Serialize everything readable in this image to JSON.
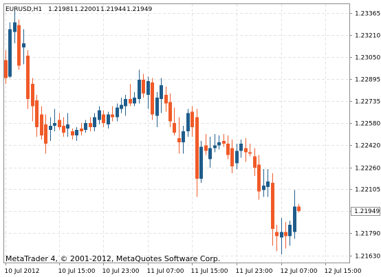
{
  "header": {
    "symbol": "EURUSD,H1",
    "open": "1.21981",
    "high": "1.22001",
    "low": "1.21944",
    "close": "1.21949"
  },
  "footer": {
    "copyright": "MetaTrader 4, © 2001-2012, MetaQuotes Software Corp."
  },
  "current_price_label": "1.21949",
  "colors": {
    "bull": "#1f5c8b",
    "bear": "#f05a28",
    "background": "#ffffff",
    "grid": "#e2e2e2",
    "axis": "#8a8a8a"
  },
  "chart_data": {
    "type": "candlestick",
    "grid": true,
    "ylim": [
      1.2158,
      1.2343
    ],
    "y_ticks": [
      "1.23365",
      "1.23210",
      "1.23050",
      "1.22895",
      "1.22735",
      "1.22580",
      "1.22420",
      "1.22260",
      "1.22105",
      "1.21949",
      "1.21790",
      "1.21630"
    ],
    "x_tick_labels": [
      "10 Jul 2012",
      "10 Jul 15:00",
      "10 Jul 23:00",
      "11 Jul 07:00",
      "11 Jul 15:00",
      "11 Jul 23:00",
      "12 Jul 07:00",
      "12 Jul 15:00"
    ],
    "x_tick_candle_index": [
      0,
      12,
      22,
      32,
      42,
      52,
      62,
      72
    ],
    "current_price": 1.21949,
    "candles": [
      {
        "o": 1.2303,
        "h": 1.231,
        "l": 1.2286,
        "c": 1.229
      },
      {
        "o": 1.2291,
        "h": 1.233,
        "l": 1.229,
        "c": 1.2325
      },
      {
        "o": 1.2323,
        "h": 1.234,
        "l": 1.2315,
        "c": 1.233
      },
      {
        "o": 1.2328,
        "h": 1.2332,
        "l": 1.2296,
        "c": 1.2299
      },
      {
        "o": 1.2312,
        "h": 1.2325,
        "l": 1.23,
        "c": 1.2315
      },
      {
        "o": 1.2306,
        "h": 1.231,
        "l": 1.2268,
        "c": 1.2275
      },
      {
        "o": 1.2286,
        "h": 1.229,
        "l": 1.2259,
        "c": 1.227
      },
      {
        "o": 1.2274,
        "h": 1.2278,
        "l": 1.2248,
        "c": 1.2255
      },
      {
        "o": 1.2264,
        "h": 1.227,
        "l": 1.2246,
        "c": 1.2249
      },
      {
        "o": 1.2257,
        "h": 1.2264,
        "l": 1.2236,
        "c": 1.2243
      },
      {
        "o": 1.2253,
        "h": 1.2262,
        "l": 1.2245,
        "c": 1.2256
      },
      {
        "o": 1.2256,
        "h": 1.2268,
        "l": 1.2252,
        "c": 1.2258
      },
      {
        "o": 1.226,
        "h": 1.2265,
        "l": 1.2253,
        "c": 1.2255
      },
      {
        "o": 1.2256,
        "h": 1.2262,
        "l": 1.2248,
        "c": 1.2251
      },
      {
        "o": 1.2254,
        "h": 1.2265,
        "l": 1.2248,
        "c": 1.2257
      },
      {
        "o": 1.2252,
        "h": 1.2254,
        "l": 1.2246,
        "c": 1.2249
      },
      {
        "o": 1.2249,
        "h": 1.2255,
        "l": 1.2245,
        "c": 1.2253
      },
      {
        "o": 1.2254,
        "h": 1.2258,
        "l": 1.2249,
        "c": 1.2252
      },
      {
        "o": 1.2253,
        "h": 1.226,
        "l": 1.2251,
        "c": 1.2258
      },
      {
        "o": 1.2258,
        "h": 1.2262,
        "l": 1.2252,
        "c": 1.2255
      },
      {
        "o": 1.2255,
        "h": 1.2265,
        "l": 1.2252,
        "c": 1.2262
      },
      {
        "o": 1.226,
        "h": 1.227,
        "l": 1.2257,
        "c": 1.2267
      },
      {
        "o": 1.2264,
        "h": 1.2267,
        "l": 1.2255,
        "c": 1.2258
      },
      {
        "o": 1.2257,
        "h": 1.2266,
        "l": 1.2254,
        "c": 1.2264
      },
      {
        "o": 1.2264,
        "h": 1.227,
        "l": 1.2259,
        "c": 1.2262
      },
      {
        "o": 1.2262,
        "h": 1.2272,
        "l": 1.2259,
        "c": 1.2269
      },
      {
        "o": 1.2268,
        "h": 1.2276,
        "l": 1.2265,
        "c": 1.2271
      },
      {
        "o": 1.227,
        "h": 1.2278,
        "l": 1.2263,
        "c": 1.2275
      },
      {
        "o": 1.2275,
        "h": 1.2286,
        "l": 1.227,
        "c": 1.2272
      },
      {
        "o": 1.2272,
        "h": 1.228,
        "l": 1.227,
        "c": 1.2276
      },
      {
        "o": 1.2275,
        "h": 1.2296,
        "l": 1.2272,
        "c": 1.2289
      },
      {
        "o": 1.2289,
        "h": 1.2293,
        "l": 1.2276,
        "c": 1.2279
      },
      {
        "o": 1.2278,
        "h": 1.2291,
        "l": 1.2268,
        "c": 1.2288
      },
      {
        "o": 1.2287,
        "h": 1.229,
        "l": 1.226,
        "c": 1.2264
      },
      {
        "o": 1.2263,
        "h": 1.228,
        "l": 1.2255,
        "c": 1.2276
      },
      {
        "o": 1.2275,
        "h": 1.229,
        "l": 1.2265,
        "c": 1.2285
      },
      {
        "o": 1.2278,
        "h": 1.2284,
        "l": 1.2266,
        "c": 1.2272
      },
      {
        "o": 1.2273,
        "h": 1.2279,
        "l": 1.2255,
        "c": 1.2259
      },
      {
        "o": 1.2258,
        "h": 1.2269,
        "l": 1.2249,
        "c": 1.2251
      },
      {
        "o": 1.2247,
        "h": 1.2262,
        "l": 1.2236,
        "c": 1.2244
      },
      {
        "o": 1.2244,
        "h": 1.2256,
        "l": 1.2236,
        "c": 1.2252
      },
      {
        "o": 1.2252,
        "h": 1.2268,
        "l": 1.2248,
        "c": 1.2265
      },
      {
        "o": 1.2266,
        "h": 1.227,
        "l": 1.2248,
        "c": 1.2255
      },
      {
        "o": 1.2262,
        "h": 1.2268,
        "l": 1.2205,
        "c": 1.2218
      },
      {
        "o": 1.2218,
        "h": 1.2245,
        "l": 1.2215,
        "c": 1.2241
      },
      {
        "o": 1.2242,
        "h": 1.225,
        "l": 1.2235,
        "c": 1.2238
      },
      {
        "o": 1.2232,
        "h": 1.2248,
        "l": 1.2226,
        "c": 1.224
      },
      {
        "o": 1.224,
        "h": 1.225,
        "l": 1.2237,
        "c": 1.2242
      },
      {
        "o": 1.2242,
        "h": 1.2249,
        "l": 1.2239,
        "c": 1.2244
      },
      {
        "o": 1.2245,
        "h": 1.225,
        "l": 1.2241,
        "c": 1.2243
      },
      {
        "o": 1.2243,
        "h": 1.2249,
        "l": 1.2232,
        "c": 1.2235
      },
      {
        "o": 1.224,
        "h": 1.2246,
        "l": 1.2222,
        "c": 1.2227
      },
      {
        "o": 1.2229,
        "h": 1.2243,
        "l": 1.2225,
        "c": 1.2238
      },
      {
        "o": 1.2238,
        "h": 1.2246,
        "l": 1.2233,
        "c": 1.2243
      },
      {
        "o": 1.224,
        "h": 1.2247,
        "l": 1.223,
        "c": 1.2237
      },
      {
        "o": 1.2237,
        "h": 1.2243,
        "l": 1.2234,
        "c": 1.2236
      },
      {
        "o": 1.2234,
        "h": 1.224,
        "l": 1.222,
        "c": 1.2226
      },
      {
        "o": 1.2228,
        "h": 1.2235,
        "l": 1.2203,
        "c": 1.2209
      },
      {
        "o": 1.221,
        "h": 1.2225,
        "l": 1.2205,
        "c": 1.2213
      },
      {
        "o": 1.2212,
        "h": 1.2225,
        "l": 1.2205,
        "c": 1.2216
      },
      {
        "o": 1.2215,
        "h": 1.2222,
        "l": 1.217,
        "c": 1.2182
      },
      {
        "o": 1.218,
        "h": 1.2185,
        "l": 1.2166,
        "c": 1.2177
      },
      {
        "o": 1.2176,
        "h": 1.219,
        "l": 1.2164,
        "c": 1.218
      },
      {
        "o": 1.218,
        "h": 1.2187,
        "l": 1.2168,
        "c": 1.2177
      },
      {
        "o": 1.2177,
        "h": 1.2188,
        "l": 1.217,
        "c": 1.2185
      },
      {
        "o": 1.218,
        "h": 1.221,
        "l": 1.2175,
        "c": 1.2198
      },
      {
        "o": 1.2198,
        "h": 1.22,
        "l": 1.2194,
        "c": 1.2195
      }
    ]
  }
}
